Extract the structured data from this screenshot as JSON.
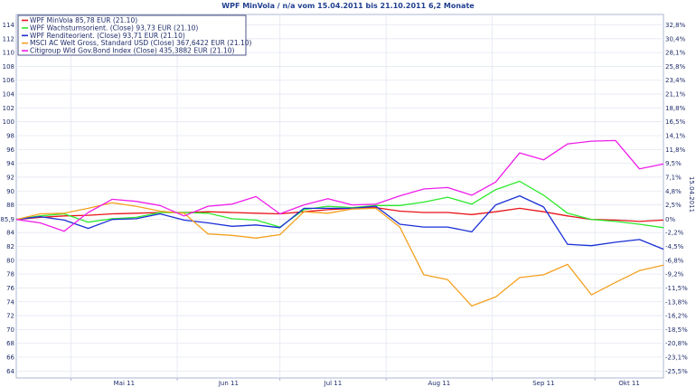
{
  "chart_data": {
    "type": "line",
    "title": "WPF MinVola / n/a vom 15.04.2011 bis 21.10.2011 6,2 Monate",
    "right_axis_label": "15.04.2011",
    "x_ticks": [
      "Mai 11",
      "Jun 11",
      "Jul 11",
      "Aug 11",
      "Sep 11",
      "Okt 11"
    ],
    "y_left_ticks": [
      "114",
      "112",
      "110",
      "108",
      "106",
      "104",
      "102",
      "100",
      "98",
      "96",
      "94",
      "92",
      "90",
      "88",
      "85,9",
      "84",
      "82",
      "80",
      "78",
      "76",
      "74",
      "72",
      "70",
      "68",
      "66",
      "64"
    ],
    "y_left_tick_values": [
      114,
      112,
      110,
      108,
      106,
      104,
      102,
      100,
      98,
      96,
      94,
      92,
      90,
      88,
      85.9,
      84,
      82,
      80,
      78,
      76,
      74,
      72,
      70,
      68,
      66,
      64
    ],
    "y_right_ticks": [
      "32,8%",
      "30,4%",
      "28,1%",
      "25,8%",
      "23,4%",
      "21,1%",
      "18,8%",
      "16,5%",
      "14,1%",
      "11,8%",
      "9,5%",
      "7,1%",
      "4,8%",
      "2,5%",
      "0%",
      "-2,2%",
      "-4,5%",
      "-6,8%",
      "-9,2%",
      "-11,5%",
      "-13,8%",
      "-16,2%",
      "-18,5%",
      "-20,8%",
      "-23,1%",
      "-25,5%"
    ],
    "ylim": [
      63,
      115.5
    ],
    "x": [
      "15.04.2011",
      "22.04.2011",
      "29.04.2011",
      "06.05.2011",
      "13.05.2011",
      "20.05.2011",
      "27.05.2011",
      "03.06.2011",
      "10.06.2011",
      "17.06.2011",
      "24.06.2011",
      "01.07.2011",
      "08.07.2011",
      "15.07.2011",
      "22.07.2011",
      "29.07.2011",
      "05.08.2011",
      "12.08.2011",
      "19.08.2011",
      "26.08.2011",
      "02.09.2011",
      "09.09.2011",
      "16.09.2011",
      "23.09.2011",
      "30.09.2011",
      "07.10.2011",
      "14.10.2011",
      "21.10.2011"
    ],
    "grid": true,
    "legend_position": "top-left",
    "series": [
      {
        "name": "WPF MinVola 85,78 EUR (21.10)",
        "color": "#e8141a",
        "values": [
          85.9,
          86.2,
          86.4,
          86.5,
          86.7,
          86.8,
          86.9,
          86.9,
          87.0,
          86.9,
          86.8,
          86.7,
          87.0,
          87.3,
          87.5,
          87.6,
          87.1,
          86.9,
          86.9,
          86.6,
          87.0,
          87.5,
          87.0,
          86.4,
          85.9,
          85.8,
          85.6,
          85.8
        ]
      },
      {
        "name": "WPF Wachstumsorient. (Close) 93,73 EUR (21.10)",
        "color": "#2de82d",
        "values": [
          85.9,
          86.4,
          86.7,
          85.5,
          86.0,
          86.2,
          86.9,
          86.9,
          86.8,
          86.0,
          85.8,
          84.8,
          87.3,
          87.8,
          87.6,
          87.9,
          87.9,
          88.4,
          89.1,
          88.1,
          90.2,
          91.4,
          89.4,
          86.8,
          85.9,
          85.6,
          85.2,
          84.7
        ]
      },
      {
        "name": "WPF Renditeorient. (Close) 93,71 EUR (21.10)",
        "color": "#1a2fd6",
        "values": [
          85.9,
          86.3,
          85.8,
          84.6,
          85.9,
          86.0,
          86.7,
          85.8,
          85.4,
          84.9,
          85.1,
          84.7,
          87.5,
          87.5,
          87.5,
          87.8,
          85.2,
          84.8,
          84.8,
          84.1,
          88.0,
          89.3,
          87.7,
          82.3,
          82.1,
          82.6,
          83.0,
          81.6
        ]
      },
      {
        "name": "MSCI AC Welt Gross, Standard USD (Close) 367,6422 EUR (21.10)",
        "color": "#f5a020",
        "values": [
          85.9,
          86.7,
          86.8,
          87.5,
          88.3,
          87.8,
          87.1,
          86.8,
          83.8,
          83.6,
          83.2,
          83.7,
          87.0,
          86.8,
          87.4,
          87.5,
          84.8,
          77.9,
          77.2,
          73.4,
          74.7,
          77.5,
          77.9,
          79.4,
          75.0,
          76.8,
          78.5,
          79.3
        ]
      },
      {
        "name": "Citigroup Wld Gov.Bond Index (Close) 435,3882 EUR (21.10)",
        "color": "#ee1ee8",
        "values": [
          85.9,
          85.4,
          84.2,
          86.9,
          88.8,
          88.5,
          87.9,
          86.4,
          87.8,
          88.1,
          89.2,
          86.7,
          88.0,
          88.9,
          88.0,
          88.1,
          89.3,
          90.3,
          90.5,
          89.4,
          91.3,
          95.5,
          94.5,
          96.8,
          97.2,
          97.3,
          93.2,
          93.9
        ]
      }
    ]
  }
}
